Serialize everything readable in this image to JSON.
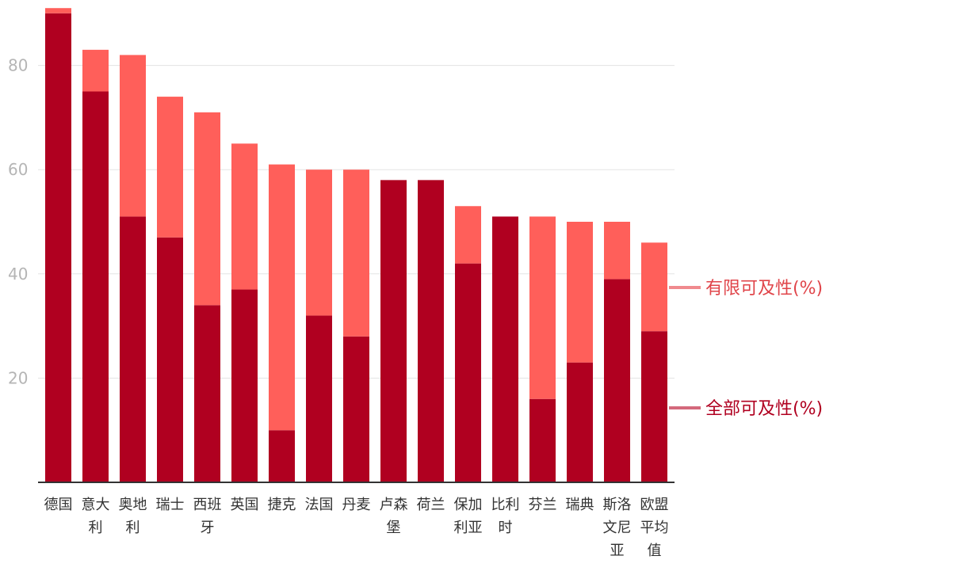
{
  "chart_data": {
    "type": "bar",
    "stacked": true,
    "categories": [
      "德国",
      "意大利",
      "奥地利",
      "瑞士",
      "西班牙",
      "英国",
      "捷克",
      "法国",
      "丹麦",
      "卢森堡",
      "荷兰",
      "保加利亚",
      "比利时",
      "芬兰",
      "瑞典",
      "斯洛文尼亚",
      "欧盟平均值"
    ],
    "category_lines": [
      [
        "德国"
      ],
      [
        "意大",
        "利"
      ],
      [
        "奥地",
        "利"
      ],
      [
        "瑞士"
      ],
      [
        "西班",
        "牙"
      ],
      [
        "英国"
      ],
      [
        "捷克"
      ],
      [
        "法国"
      ],
      [
        "丹麦"
      ],
      [
        "卢森",
        "堡"
      ],
      [
        "荷兰"
      ],
      [
        "保加",
        "利亚"
      ],
      [
        "比利",
        "时"
      ],
      [
        "芬兰"
      ],
      [
        "瑞典"
      ],
      [
        "斯洛",
        "文尼",
        "亚"
      ],
      [
        "欧盟",
        "平均",
        "值"
      ]
    ],
    "series": [
      {
        "name": "全部可及性(%)",
        "color": "#b00020",
        "values": [
          90,
          75,
          51,
          47,
          34,
          37,
          10,
          32,
          28,
          58,
          58,
          42,
          51,
          16,
          23,
          39,
          29
        ]
      },
      {
        "name": "有限可及性(%)",
        "color": "#ff5f5a",
        "values": [
          1,
          8,
          31,
          27,
          37,
          28,
          51,
          28,
          32,
          0,
          0,
          11,
          0,
          35,
          27,
          11,
          17
        ]
      }
    ],
    "yticks": [
      20,
      40,
      60,
      80
    ],
    "ylim": [
      0,
      91
    ],
    "grid": true,
    "legend": "right"
  }
}
